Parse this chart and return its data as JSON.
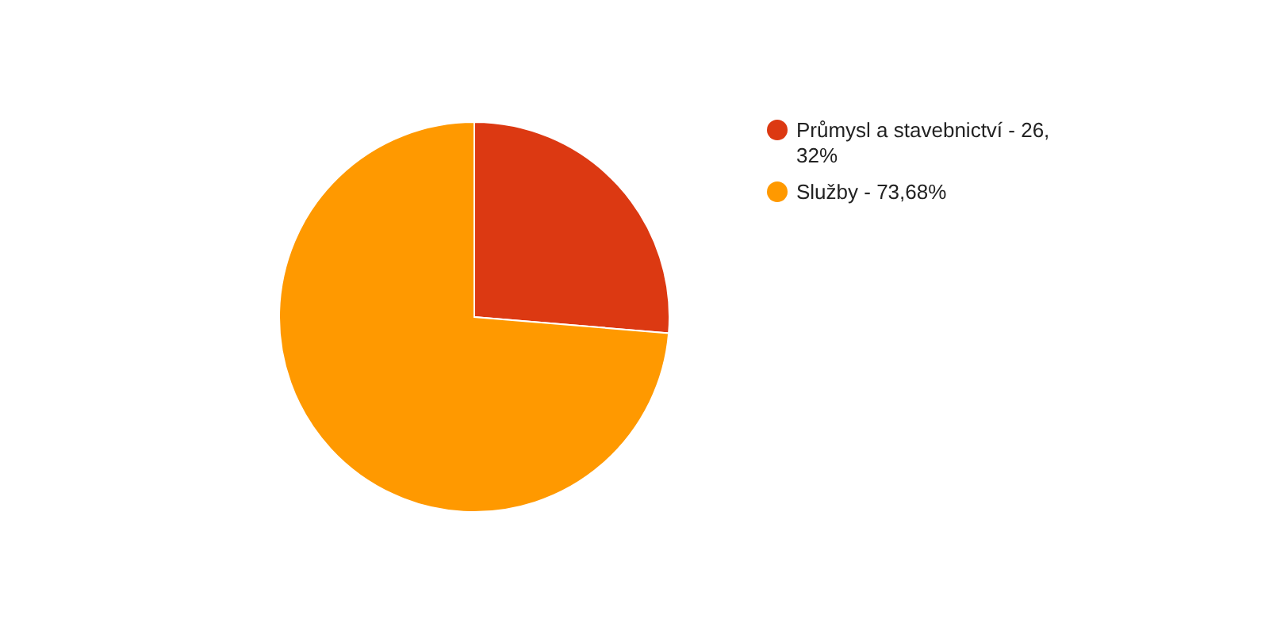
{
  "chart_data": {
    "type": "pie",
    "categories": [
      "Průmysl a stavebnictví - 26,32%",
      "Služby - 73,68%"
    ],
    "values": [
      26.32,
      73.68
    ],
    "colors": [
      "#dc3912",
      "#ff9900"
    ],
    "legend": "right"
  }
}
